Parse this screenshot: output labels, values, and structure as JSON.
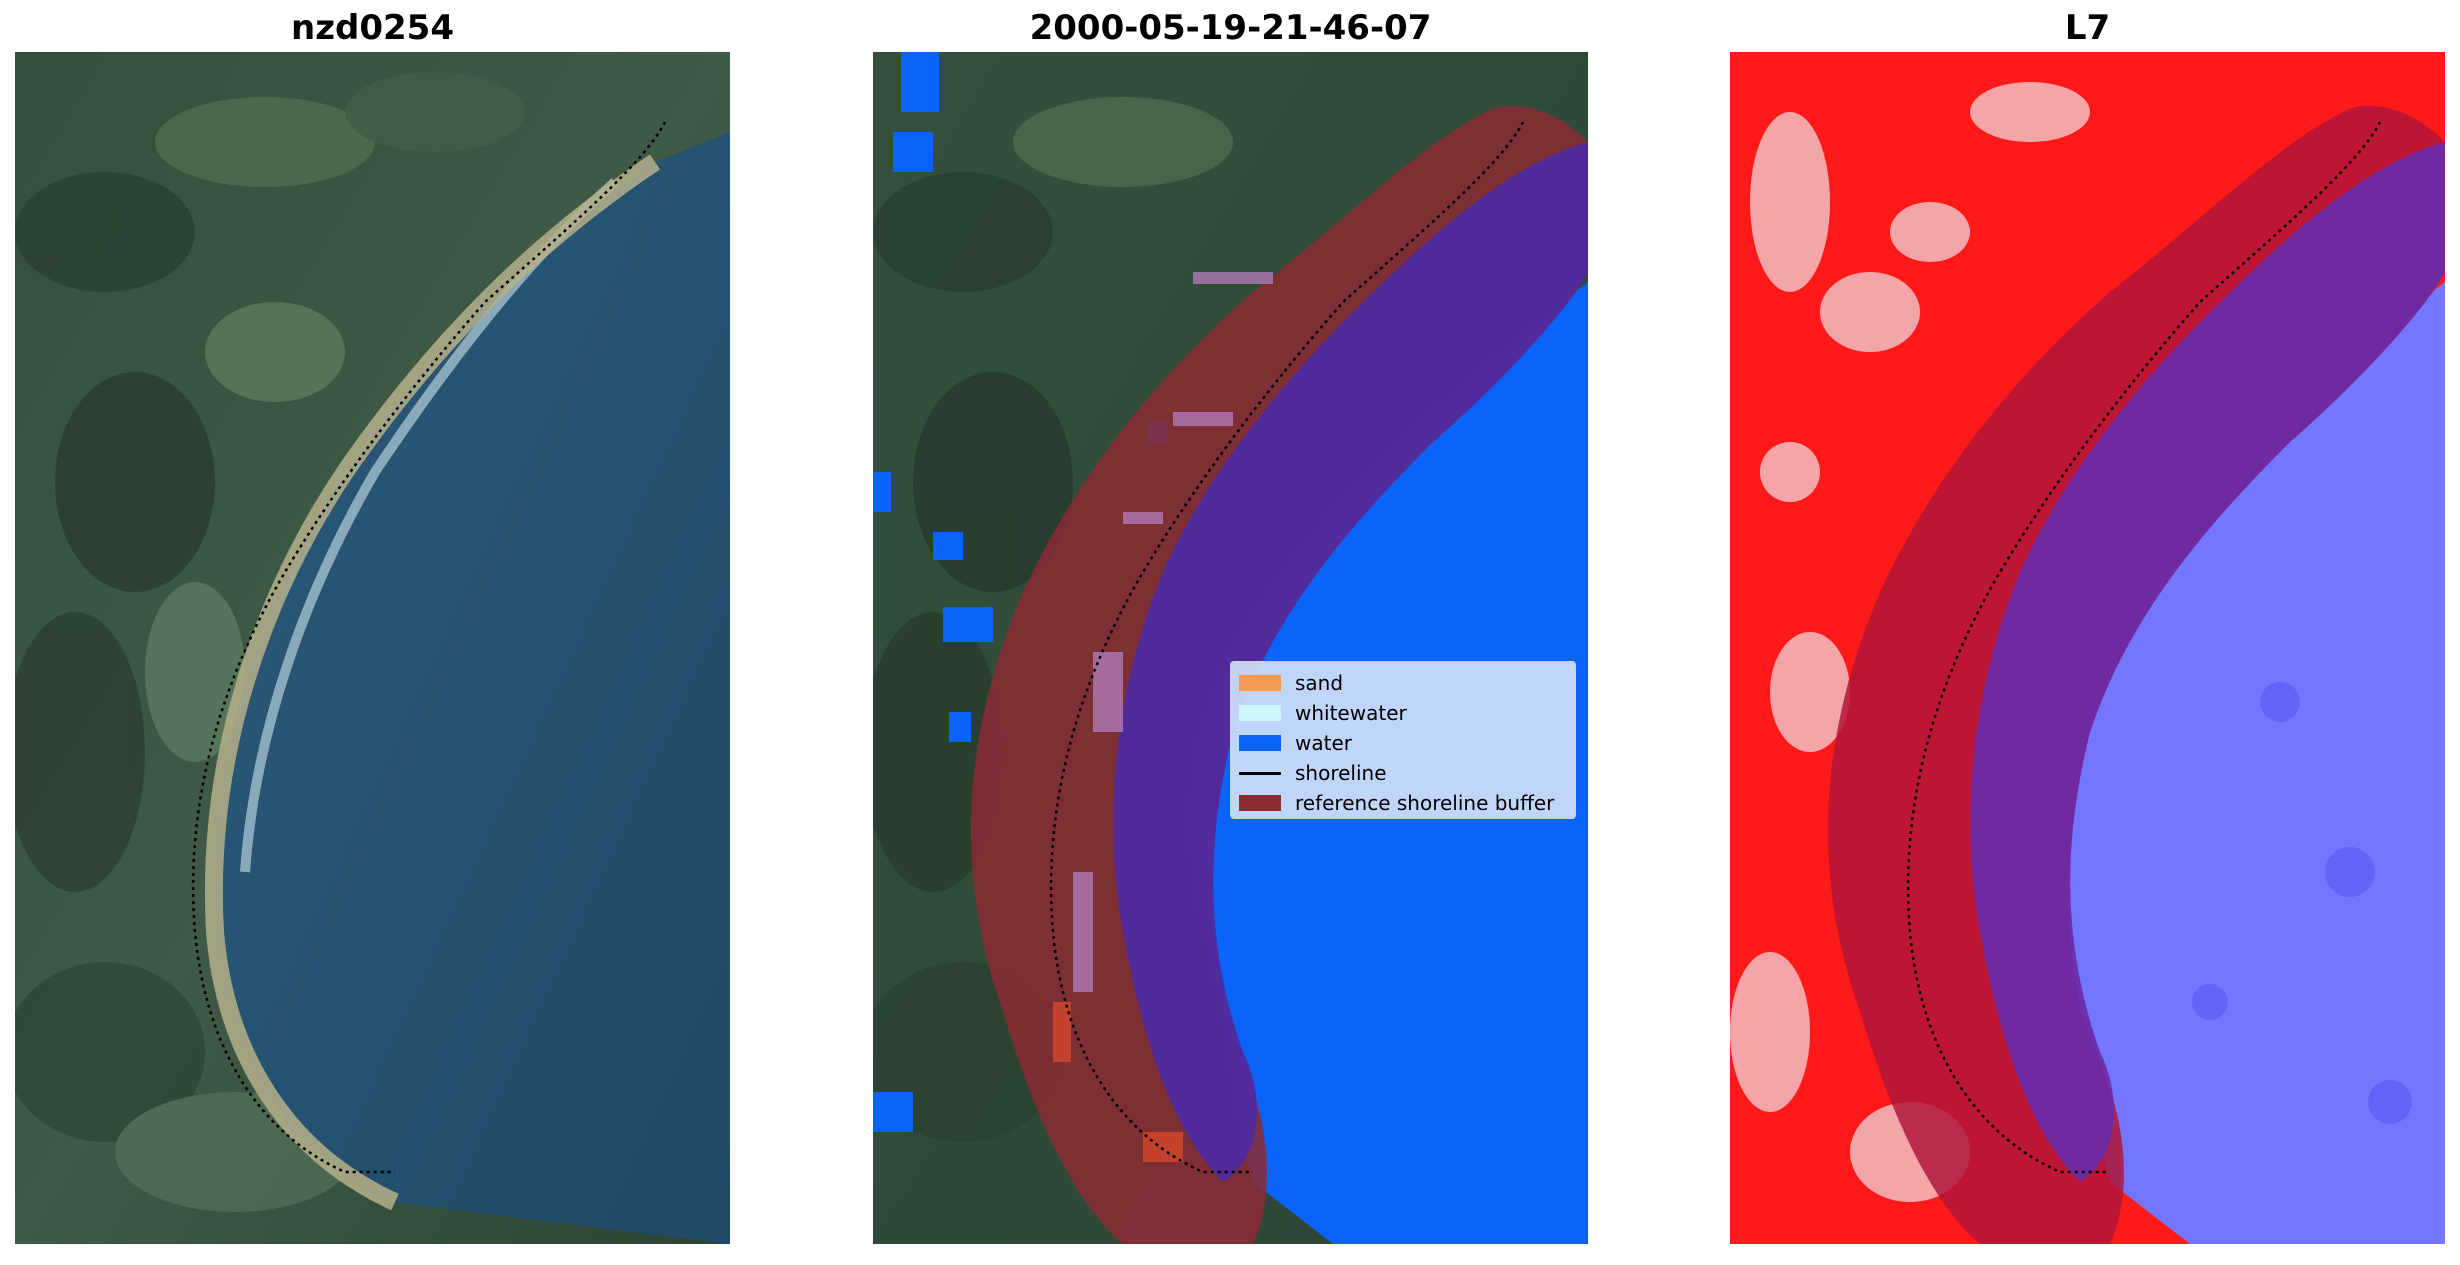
{
  "figure": {
    "panels": [
      {
        "title": "nzd0254",
        "content": "RGB satellite image of curved beach with dotted shoreline"
      },
      {
        "title": "2000-05-19-21-46-07",
        "content": "classified image with water, sand, whitewater overlay and reference shoreline buffer"
      },
      {
        "title": "L7",
        "content": "water index image (red land, blue water) with reference shoreline buffer"
      }
    ],
    "legend": {
      "items": [
        {
          "label": "sand",
          "color": "#f79a50",
          "kind": "patch"
        },
        {
          "label": "whitewater",
          "color": "#cdf7ff",
          "kind": "patch"
        },
        {
          "label": "water",
          "color": "#0a64f8",
          "kind": "patch"
        },
        {
          "label": "shoreline",
          "color": "#000000",
          "kind": "line"
        },
        {
          "label": "reference shoreline buffer",
          "color": "#8c2a34",
          "kind": "patch"
        }
      ]
    }
  }
}
